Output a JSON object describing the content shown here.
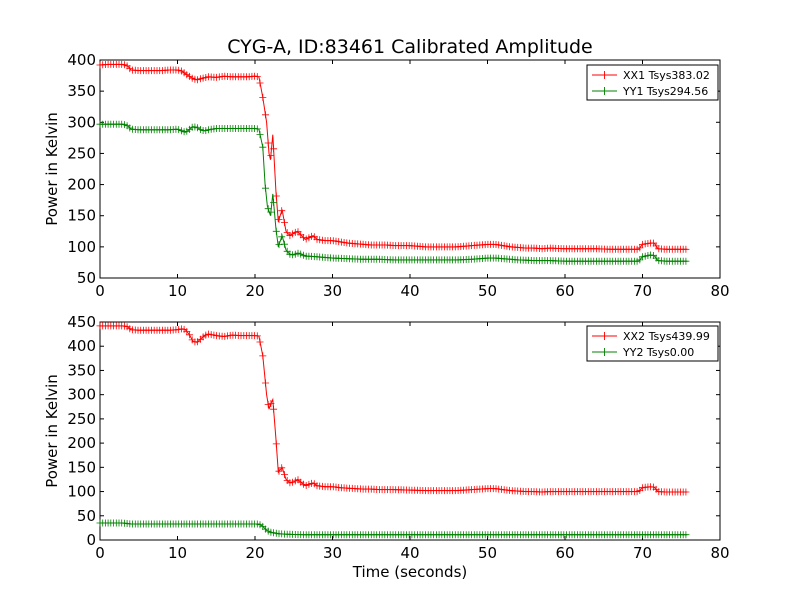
{
  "figure": {
    "title": "CYG-A, ID:83461 Calibrated Amplitude"
  },
  "chart_data": [
    {
      "type": "line",
      "title": "CYG-A, ID:83461 Calibrated Amplitude",
      "xlabel": "",
      "ylabel": "Power in Kelvin",
      "xlim": [
        0,
        80
      ],
      "ylim": [
        50,
        400
      ],
      "xticks": [
        "0",
        "10",
        "20",
        "30",
        "40",
        "50",
        "60",
        "70",
        "80"
      ],
      "yticks": [
        "50",
        "100",
        "150",
        "200",
        "250",
        "300",
        "350",
        "400"
      ],
      "legend_position": "top-right",
      "grid": false,
      "series": [
        {
          "name": "XX1 Tsys383.02",
          "color": "#ff0000",
          "marker": "+",
          "points": [
            [
              0,
              392
            ],
            [
              1,
              393
            ],
            [
              2,
              393
            ],
            [
              3,
              393
            ],
            [
              3.6,
              390
            ],
            [
              4,
              384
            ],
            [
              5,
              383
            ],
            [
              6,
              383
            ],
            [
              7,
              383
            ],
            [
              8,
              383
            ],
            [
              9,
              384
            ],
            [
              10,
              384
            ],
            [
              10.6,
              382
            ],
            [
              11,
              378
            ],
            [
              11.5,
              374
            ],
            [
              12,
              370
            ],
            [
              12.5,
              368
            ],
            [
              13,
              370
            ],
            [
              14,
              373
            ],
            [
              15,
              372
            ],
            [
              16,
              374
            ],
            [
              17,
              373
            ],
            [
              18,
              373
            ],
            [
              19,
              373
            ],
            [
              20,
              374
            ],
            [
              20.5,
              373
            ],
            [
              21,
              340
            ],
            [
              21.5,
              300
            ],
            [
              21.8,
              250
            ],
            [
              22,
              240
            ],
            [
              22.3,
              280
            ],
            [
              22.7,
              190
            ],
            [
              23,
              140
            ],
            [
              23.5,
              160
            ],
            [
              24,
              125
            ],
            [
              24.5,
              118
            ],
            [
              25,
              122
            ],
            [
              25.5,
              125
            ],
            [
              26,
              118
            ],
            [
              26.5,
              112
            ],
            [
              27,
              115
            ],
            [
              27.5,
              118
            ],
            [
              28,
              112
            ],
            [
              29,
              110
            ],
            [
              30,
              110
            ],
            [
              31,
              108
            ],
            [
              32,
              106
            ],
            [
              33,
              105
            ],
            [
              34,
              104
            ],
            [
              35,
              103
            ],
            [
              36,
              103
            ],
            [
              37,
              103
            ],
            [
              38,
              102
            ],
            [
              39,
              102
            ],
            [
              40,
              102
            ],
            [
              42,
              100
            ],
            [
              44,
              100
            ],
            [
              46,
              100
            ],
            [
              48,
              102
            ],
            [
              50,
              104
            ],
            [
              51,
              104
            ],
            [
              52,
              102
            ],
            [
              53,
              100
            ],
            [
              54,
              99
            ],
            [
              55,
              98
            ],
            [
              56,
              98
            ],
            [
              57,
              97
            ],
            [
              58,
              98
            ],
            [
              60,
              97
            ],
            [
              62,
              97
            ],
            [
              64,
              97
            ],
            [
              66,
              96
            ],
            [
              68,
              96
            ],
            [
              69.5,
              96
            ],
            [
              70,
              104
            ],
            [
              71,
              106
            ],
            [
              71.5,
              106
            ],
            [
              72,
              97
            ],
            [
              73,
              96
            ],
            [
              74,
              96
            ],
            [
              75,
              96
            ],
            [
              75.8,
              96
            ]
          ]
        },
        {
          "name": "YY1 Tsys294.56",
          "color": "#008000",
          "marker": "+",
          "points": [
            [
              0,
              297
            ],
            [
              1,
              297
            ],
            [
              2,
              297
            ],
            [
              3,
              297
            ],
            [
              3.6,
              294
            ],
            [
              4,
              289
            ],
            [
              5,
              288
            ],
            [
              6,
              288
            ],
            [
              7,
              288
            ],
            [
              8,
              288
            ],
            [
              9,
              288
            ],
            [
              10,
              289
            ],
            [
              10.6,
              286
            ],
            [
              11,
              284
            ],
            [
              11.5,
              288
            ],
            [
              12,
              293
            ],
            [
              12.5,
              292
            ],
            [
              13,
              288
            ],
            [
              13.5,
              286
            ],
            [
              14,
              288
            ],
            [
              15,
              290
            ],
            [
              16,
              290
            ],
            [
              17,
              290
            ],
            [
              18,
              290
            ],
            [
              19,
              290
            ],
            [
              20,
              290
            ],
            [
              20.5,
              289
            ],
            [
              21,
              260
            ],
            [
              21.3,
              200
            ],
            [
              21.6,
              165
            ],
            [
              22,
              150
            ],
            [
              22.3,
              185
            ],
            [
              22.7,
              130
            ],
            [
              23,
              100
            ],
            [
              23.5,
              118
            ],
            [
              24,
              95
            ],
            [
              24.5,
              88
            ],
            [
              25,
              87
            ],
            [
              25.5,
              90
            ],
            [
              26,
              88
            ],
            [
              26.5,
              85
            ],
            [
              27,
              85
            ],
            [
              28,
              84
            ],
            [
              29,
              83
            ],
            [
              30,
              82
            ],
            [
              32,
              81
            ],
            [
              34,
              80
            ],
            [
              36,
              80
            ],
            [
              38,
              79
            ],
            [
              40,
              79
            ],
            [
              42,
              79
            ],
            [
              44,
              79
            ],
            [
              46,
              79
            ],
            [
              48,
              80
            ],
            [
              50,
              82
            ],
            [
              51,
              82
            ],
            [
              52,
              81
            ],
            [
              54,
              79
            ],
            [
              56,
              78
            ],
            [
              58,
              78
            ],
            [
              60,
              77
            ],
            [
              62,
              77
            ],
            [
              64,
              77
            ],
            [
              66,
              77
            ],
            [
              68,
              77
            ],
            [
              69.5,
              77
            ],
            [
              70,
              84
            ],
            [
              71,
              87
            ],
            [
              71.5,
              86
            ],
            [
              72,
              78
            ],
            [
              73,
              77
            ],
            [
              74,
              77
            ],
            [
              75.8,
              77
            ]
          ]
        }
      ]
    },
    {
      "type": "line",
      "title": "",
      "xlabel": "Time (seconds)",
      "ylabel": "Power in Kelvin",
      "xlim": [
        0,
        80
      ],
      "ylim": [
        0,
        450
      ],
      "xticks": [
        "0",
        "10",
        "20",
        "30",
        "40",
        "50",
        "60",
        "70",
        "80"
      ],
      "yticks": [
        "0",
        "50",
        "100",
        "150",
        "200",
        "250",
        "300",
        "350",
        "400",
        "450"
      ],
      "legend_position": "top-right",
      "grid": false,
      "series": [
        {
          "name": "XX2 Tsys439.99",
          "color": "#ff0000",
          "marker": "+",
          "points": [
            [
              0,
              442
            ],
            [
              1,
              442
            ],
            [
              2,
              442
            ],
            [
              3,
              442
            ],
            [
              3.6,
              440
            ],
            [
              4,
              434
            ],
            [
              5,
              433
            ],
            [
              6,
              433
            ],
            [
              7,
              433
            ],
            [
              8,
              433
            ],
            [
              9,
              433
            ],
            [
              10,
              434
            ],
            [
              10.6,
              436
            ],
            [
              11,
              434
            ],
            [
              11.5,
              425
            ],
            [
              12,
              410
            ],
            [
              12.5,
              408
            ],
            [
              13,
              415
            ],
            [
              13.5,
              422
            ],
            [
              14,
              425
            ],
            [
              15,
              422
            ],
            [
              16,
              420
            ],
            [
              17,
              423
            ],
            [
              18,
              422
            ],
            [
              19,
              422
            ],
            [
              20,
              422
            ],
            [
              20.5,
              421
            ],
            [
              21,
              380
            ],
            [
              21.5,
              300
            ],
            [
              21.8,
              270
            ],
            [
              22,
              280
            ],
            [
              22.3,
              290
            ],
            [
              22.7,
              210
            ],
            [
              23,
              140
            ],
            [
              23.5,
              150
            ],
            [
              24,
              125
            ],
            [
              24.5,
              118
            ],
            [
              25,
              120
            ],
            [
              25.5,
              125
            ],
            [
              26,
              118
            ],
            [
              26.5,
              112
            ],
            [
              27,
              115
            ],
            [
              27.5,
              118
            ],
            [
              28,
              112
            ],
            [
              29,
              110
            ],
            [
              30,
              110
            ],
            [
              31,
              108
            ],
            [
              32,
              107
            ],
            [
              33,
              106
            ],
            [
              34,
              105
            ],
            [
              35,
              105
            ],
            [
              36,
              104
            ],
            [
              38,
              104
            ],
            [
              40,
              103
            ],
            [
              42,
              102
            ],
            [
              44,
              102
            ],
            [
              46,
              102
            ],
            [
              48,
              104
            ],
            [
              50,
              106
            ],
            [
              51,
              106
            ],
            [
              52,
              104
            ],
            [
              53,
              102
            ],
            [
              54,
              101
            ],
            [
              55,
              100
            ],
            [
              56,
              100
            ],
            [
              57,
              99
            ],
            [
              58,
              100
            ],
            [
              60,
              100
            ],
            [
              62,
              100
            ],
            [
              64,
              100
            ],
            [
              66,
              100
            ],
            [
              68,
              100
            ],
            [
              69.5,
              100
            ],
            [
              70,
              108
            ],
            [
              71,
              110
            ],
            [
              71.5,
              109
            ],
            [
              72,
              100
            ],
            [
              73,
              99
            ],
            [
              74,
              99
            ],
            [
              75.8,
              99
            ]
          ]
        },
        {
          "name": "YY2 Tsys0.00",
          "color": "#008000",
          "marker": "+",
          "points": [
            [
              0,
              35
            ],
            [
              1,
              35
            ],
            [
              2,
              35
            ],
            [
              3,
              35
            ],
            [
              4,
              33
            ],
            [
              5,
              33
            ],
            [
              6,
              33
            ],
            [
              7,
              33
            ],
            [
              8,
              33
            ],
            [
              9,
              33
            ],
            [
              10,
              33
            ],
            [
              11,
              33
            ],
            [
              12,
              33
            ],
            [
              13,
              33
            ],
            [
              14,
              33
            ],
            [
              15,
              33
            ],
            [
              16,
              33
            ],
            [
              17,
              33
            ],
            [
              18,
              33
            ],
            [
              19,
              33
            ],
            [
              20,
              33
            ],
            [
              20.5,
              33
            ],
            [
              21,
              28
            ],
            [
              21.5,
              20
            ],
            [
              22,
              16
            ],
            [
              23,
              13
            ],
            [
              24,
              12
            ],
            [
              26,
              11
            ],
            [
              28,
              11
            ],
            [
              30,
              11
            ],
            [
              35,
              11
            ],
            [
              40,
              11
            ],
            [
              45,
              11
            ],
            [
              50,
              11
            ],
            [
              55,
              11
            ],
            [
              60,
              11
            ],
            [
              65,
              11
            ],
            [
              70,
              11
            ],
            [
              72,
              11
            ],
            [
              75.8,
              11
            ]
          ]
        }
      ]
    }
  ]
}
